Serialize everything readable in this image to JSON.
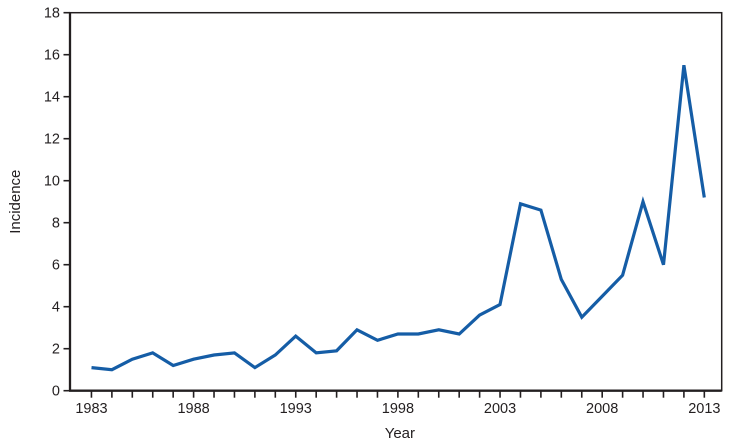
{
  "page": {
    "background": "#ffffff"
  },
  "chart_data": {
    "type": "line",
    "title": "",
    "xlabel": "Year",
    "ylabel": "Incidence",
    "x": [
      1983,
      1984,
      1985,
      1986,
      1987,
      1988,
      1989,
      1990,
      1991,
      1992,
      1993,
      1994,
      1995,
      1996,
      1997,
      1998,
      1999,
      2000,
      2001,
      2002,
      2003,
      2004,
      2005,
      2006,
      2007,
      2008,
      2009,
      2010,
      2011,
      2012,
      2013
    ],
    "series": [
      {
        "name": "Incidence",
        "color": "#155da6",
        "values": [
          1.1,
          1.0,
          1.5,
          1.8,
          1.2,
          1.5,
          1.7,
          1.8,
          1.1,
          1.7,
          2.6,
          1.8,
          1.9,
          2.9,
          2.4,
          2.7,
          2.7,
          2.9,
          2.7,
          3.6,
          4.1,
          8.9,
          8.6,
          5.3,
          3.5,
          4.5,
          5.5,
          9.0,
          6.0,
          15.5,
          9.2
        ]
      }
    ],
    "ylim": [
      0,
      18
    ],
    "ytick_step": 2,
    "ytick_labels": [
      "0",
      "2",
      "4",
      "6",
      "8",
      "10",
      "12",
      "14",
      "16",
      "18"
    ],
    "xlim": [
      1981.95,
      2013.85
    ],
    "xtick_every_year": true,
    "xtick_labels": [
      "1983",
      "1988",
      "1993",
      "1998",
      "2003",
      "2008",
      "2013"
    ],
    "grid": false,
    "legend": "none",
    "plot_border": true,
    "axis_color": "#231f20",
    "tick_label_color": "#231f20"
  }
}
